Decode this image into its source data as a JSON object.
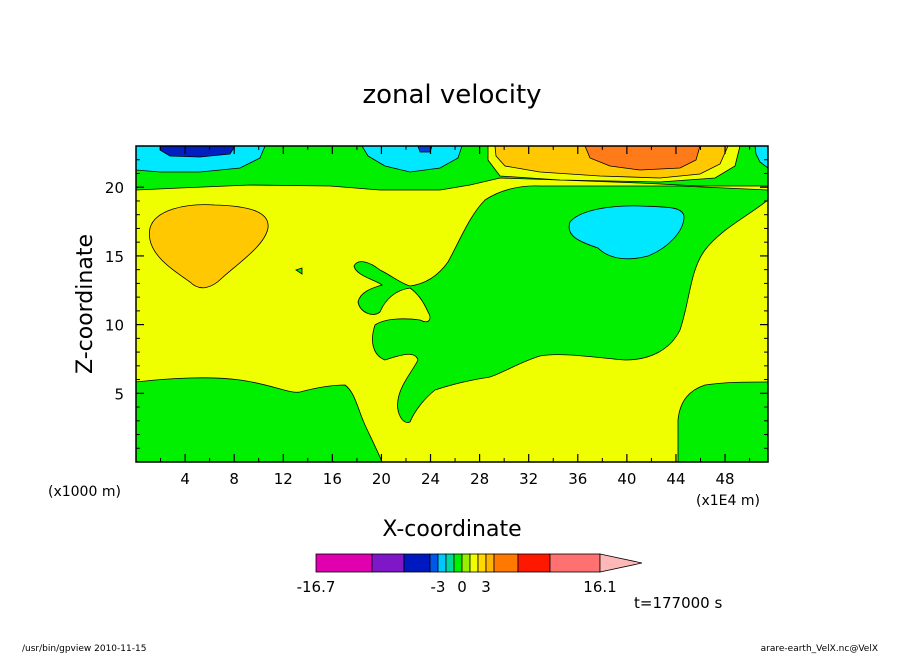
{
  "chart_data": {
    "type": "heatmap",
    "title": "zonal velocity",
    "xlabel": "X-coordinate",
    "ylabel": "Z-coordinate",
    "x_unit_label": "(x1E4 m)",
    "y_unit_label": "(x1000 m)",
    "x_ticks": [
      4,
      8,
      12,
      16,
      20,
      24,
      28,
      32,
      36,
      40,
      44,
      48
    ],
    "y_ticks": [
      5,
      10,
      15,
      20
    ],
    "xlim": [
      0,
      51.5
    ],
    "ylim": [
      0,
      23
    ],
    "colorbar": {
      "colors": [
        "#e000b0",
        "#7f16c8",
        "#0018c0",
        "#0058e8",
        "#00c8ff",
        "#00d8a0",
        "#00f000",
        "#98f000",
        "#f0ff00",
        "#ffd800",
        "#ffb400",
        "#ff7800",
        "#ff1800",
        "#ff7070",
        "#ffb8b8"
      ],
      "tick_labels": [
        {
          "label": "-16.7",
          "index": 0
        },
        {
          "label": "-3",
          "index": 4
        },
        {
          "label": "0",
          "index": 7
        },
        {
          "label": "3",
          "index": 10
        },
        {
          "label": "16.1",
          "index": 14
        }
      ]
    },
    "regions": {
      "background": "yellow",
      "green_band_top": "green",
      "upper_band": "cyan/blue/orange",
      "central_lobe": "green",
      "upper_left_blob": "orange",
      "upper_right_blob": "cyan"
    }
  },
  "time_label": "t=177000 s",
  "footer_left": "/usr/bin/gpview   2010-11-15",
  "footer_right": "arare-earth_VelX.nc@VelX"
}
